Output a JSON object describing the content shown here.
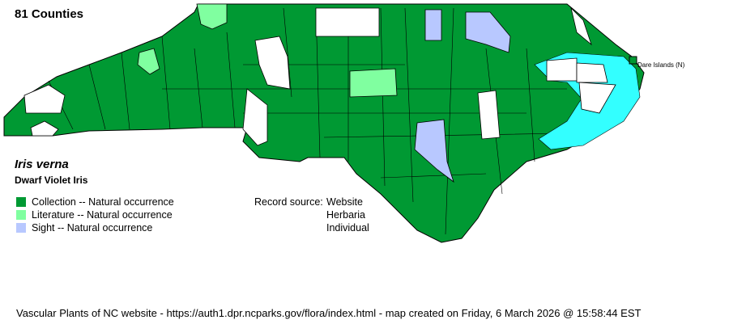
{
  "header": {
    "county_count": "81 Counties"
  },
  "species": {
    "scientific_name": "Iris verna",
    "common_name": "Dwarf Violet Iris"
  },
  "legend": {
    "items": [
      {
        "label": "Collection -- Natural occurrence",
        "color": "#009933"
      },
      {
        "label": "Literature -- Natural occurrence",
        "color": "#80ffa0"
      },
      {
        "label": "Sight -- Natural occurrence",
        "color": "#b8c8ff"
      }
    ]
  },
  "record_source": {
    "label": "Record source:",
    "values": [
      "Website",
      "Herbaria",
      "Individual"
    ]
  },
  "map": {
    "annotation": "Dare Islands (N)",
    "water_color": "#33ffff",
    "no_record_color": "#ffffff"
  },
  "footer": "Vascular Plants of NC website - https://auth1.dpr.ncparks.gov/flora/index.html - map created on Friday, 6 March 2026 @ 15:58:44 EST"
}
